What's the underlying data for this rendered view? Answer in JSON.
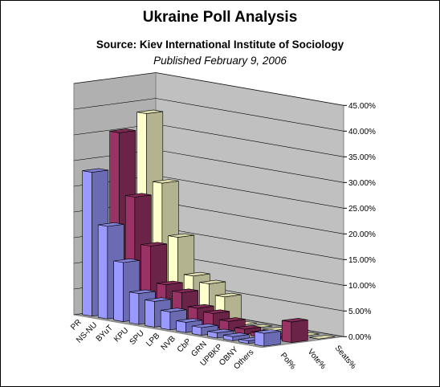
{
  "chart_data": {
    "type": "bar3d",
    "title": "Ukraine Poll Analysis",
    "subtitle": "Source: Kiev International Institute of Sociology",
    "annotation": "Published February 9, 2006",
    "categories": [
      "PR",
      "NS-NU",
      "BYuT",
      "KPU",
      "SPU",
      "LPB",
      "NVB",
      "CbP",
      "GRN",
      "UPBKP",
      "OBNY",
      "Others"
    ],
    "series": [
      {
        "name": "Pol%",
        "color": "#9999ff",
        "values": [
          28,
          18,
          11.5,
          6,
          5,
          3.5,
          2,
          1.5,
          1,
          0.8,
          0.5,
          2.5
        ]
      },
      {
        "name": "Vote%",
        "color": "#993366",
        "values": [
          35,
          23,
          14,
          7,
          6,
          3.5,
          3,
          2,
          1,
          0.7,
          0.5,
          4
        ]
      },
      {
        "name": "Seats%",
        "color": "#ffffcc",
        "values": [
          38,
          25,
          15,
          8,
          7,
          5,
          0,
          0,
          0,
          0,
          0,
          0
        ]
      }
    ],
    "ylim": [
      0,
      45
    ],
    "yticks": [
      {
        "value": 0,
        "label": "0.00%"
      },
      {
        "value": 5,
        "label": "5.00%"
      },
      {
        "value": 10,
        "label": "10.00%"
      },
      {
        "value": 15,
        "label": "15.00%"
      },
      {
        "value": 20,
        "label": "20.00%"
      },
      {
        "value": 25,
        "label": "25.00%"
      },
      {
        "value": 30,
        "label": "30.00%"
      },
      {
        "value": 35,
        "label": "35.00%"
      },
      {
        "value": 40,
        "label": "40.00%"
      },
      {
        "value": 45,
        "label": "45.00%"
      }
    ],
    "grid": true
  }
}
